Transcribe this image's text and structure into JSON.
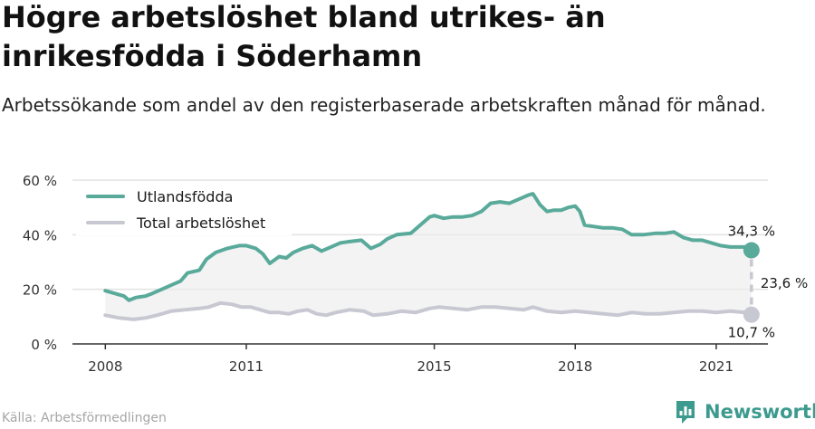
{
  "title": "Högre arbetslöshet bland utrikes- än inrikesfödda i Söderhamn",
  "subtitle": "Arbetssökande som andel av den registerbaserade arbetskraften månad för månad.",
  "source": "Källa: Arbetsförmedlingen",
  "brand": "Newsworthy",
  "chart_data": {
    "type": "line",
    "y_ticks": [
      "0 %",
      "20 %",
      "40 %",
      "60 %"
    ],
    "ylim": [
      0,
      60
    ],
    "x_ticks": [
      "2008",
      "2011",
      "2015",
      "2018",
      "2021"
    ],
    "x_tick_values": [
      2008,
      2011,
      2015,
      2018,
      2021
    ],
    "xlim": [
      2007.3,
      2022.1
    ],
    "grid": true,
    "legend_position": "top-left",
    "gap_label": "23,6 %",
    "colors": {
      "utlandsfodda": "#5aaa9b",
      "total": "#c8c8d2",
      "fill": "#ececec"
    },
    "series": [
      {
        "name": "Utlandsfödda",
        "end_label": "34,3 %",
        "values": [
          [
            2008.0,
            19.5
          ],
          [
            2008.2,
            18.5
          ],
          [
            2008.4,
            17.5
          ],
          [
            2008.5,
            16.0
          ],
          [
            2008.65,
            17.0
          ],
          [
            2008.85,
            17.5
          ],
          [
            2009.0,
            18.5
          ],
          [
            2009.2,
            20.0
          ],
          [
            2009.4,
            21.5
          ],
          [
            2009.6,
            23.0
          ],
          [
            2009.75,
            26.0
          ],
          [
            2010.0,
            27.0
          ],
          [
            2010.15,
            31.0
          ],
          [
            2010.35,
            33.5
          ],
          [
            2010.6,
            35.0
          ],
          [
            2010.85,
            36.0
          ],
          [
            2011.0,
            36.0
          ],
          [
            2011.2,
            35.0
          ],
          [
            2011.35,
            33.0
          ],
          [
            2011.5,
            29.5
          ],
          [
            2011.7,
            32.0
          ],
          [
            2011.85,
            31.5
          ],
          [
            2012.0,
            33.5
          ],
          [
            2012.2,
            35.0
          ],
          [
            2012.4,
            36.0
          ],
          [
            2012.6,
            34.0
          ],
          [
            2012.8,
            35.5
          ],
          [
            2013.0,
            37.0
          ],
          [
            2013.2,
            37.5
          ],
          [
            2013.45,
            38.0
          ],
          [
            2013.65,
            35.0
          ],
          [
            2013.85,
            36.5
          ],
          [
            2014.0,
            38.5
          ],
          [
            2014.2,
            40.0
          ],
          [
            2014.5,
            40.5
          ],
          [
            2014.7,
            43.5
          ],
          [
            2014.9,
            46.5
          ],
          [
            2015.0,
            47.0
          ],
          [
            2015.2,
            46.0
          ],
          [
            2015.4,
            46.5
          ],
          [
            2015.6,
            46.5
          ],
          [
            2015.8,
            47.0
          ],
          [
            2016.0,
            48.5
          ],
          [
            2016.2,
            51.5
          ],
          [
            2016.4,
            52.0
          ],
          [
            2016.6,
            51.5
          ],
          [
            2016.8,
            53.0
          ],
          [
            2017.0,
            54.5
          ],
          [
            2017.1,
            55.0
          ],
          [
            2017.25,
            51.0
          ],
          [
            2017.4,
            48.5
          ],
          [
            2017.55,
            49.0
          ],
          [
            2017.7,
            49.0
          ],
          [
            2017.85,
            50.0
          ],
          [
            2018.0,
            50.5
          ],
          [
            2018.1,
            48.5
          ],
          [
            2018.2,
            43.5
          ],
          [
            2018.4,
            43.0
          ],
          [
            2018.6,
            42.5
          ],
          [
            2018.8,
            42.5
          ],
          [
            2019.0,
            42.0
          ],
          [
            2019.2,
            40.0
          ],
          [
            2019.45,
            40.0
          ],
          [
            2019.7,
            40.5
          ],
          [
            2019.9,
            40.5
          ],
          [
            2020.1,
            41.0
          ],
          [
            2020.3,
            39.0
          ],
          [
            2020.5,
            38.0
          ],
          [
            2020.7,
            38.0
          ],
          [
            2020.9,
            37.0
          ],
          [
            2021.1,
            36.0
          ],
          [
            2021.3,
            35.5
          ],
          [
            2021.5,
            35.5
          ],
          [
            2021.7,
            35.5
          ],
          [
            2021.75,
            34.3
          ]
        ]
      },
      {
        "name": "Total arbetslöshet",
        "end_label": "10,7 %",
        "values": [
          [
            2008.0,
            10.5
          ],
          [
            2008.3,
            9.5
          ],
          [
            2008.6,
            9.0
          ],
          [
            2008.85,
            9.5
          ],
          [
            2009.1,
            10.5
          ],
          [
            2009.4,
            12.0
          ],
          [
            2009.7,
            12.5
          ],
          [
            2010.0,
            13.0
          ],
          [
            2010.2,
            13.5
          ],
          [
            2010.45,
            15.0
          ],
          [
            2010.7,
            14.5
          ],
          [
            2010.9,
            13.5
          ],
          [
            2011.1,
            13.5
          ],
          [
            2011.3,
            12.5
          ],
          [
            2011.5,
            11.5
          ],
          [
            2011.7,
            11.5
          ],
          [
            2011.9,
            11.0
          ],
          [
            2012.1,
            12.0
          ],
          [
            2012.3,
            12.5
          ],
          [
            2012.5,
            11.0
          ],
          [
            2012.7,
            10.5
          ],
          [
            2012.9,
            11.5
          ],
          [
            2013.2,
            12.5
          ],
          [
            2013.5,
            12.0
          ],
          [
            2013.7,
            10.5
          ],
          [
            2014.0,
            11.0
          ],
          [
            2014.3,
            12.0
          ],
          [
            2014.6,
            11.5
          ],
          [
            2014.9,
            13.0
          ],
          [
            2015.1,
            13.5
          ],
          [
            2015.4,
            13.0
          ],
          [
            2015.7,
            12.5
          ],
          [
            2016.0,
            13.5
          ],
          [
            2016.3,
            13.5
          ],
          [
            2016.6,
            13.0
          ],
          [
            2016.9,
            12.5
          ],
          [
            2017.1,
            13.5
          ],
          [
            2017.4,
            12.0
          ],
          [
            2017.7,
            11.5
          ],
          [
            2018.0,
            12.0
          ],
          [
            2018.3,
            11.5
          ],
          [
            2018.6,
            11.0
          ],
          [
            2018.9,
            10.5
          ],
          [
            2019.2,
            11.5
          ],
          [
            2019.5,
            11.0
          ],
          [
            2019.8,
            11.0
          ],
          [
            2020.1,
            11.5
          ],
          [
            2020.4,
            12.0
          ],
          [
            2020.7,
            12.0
          ],
          [
            2021.0,
            11.5
          ],
          [
            2021.3,
            12.0
          ],
          [
            2021.6,
            11.5
          ],
          [
            2021.75,
            10.7
          ]
        ]
      }
    ]
  }
}
